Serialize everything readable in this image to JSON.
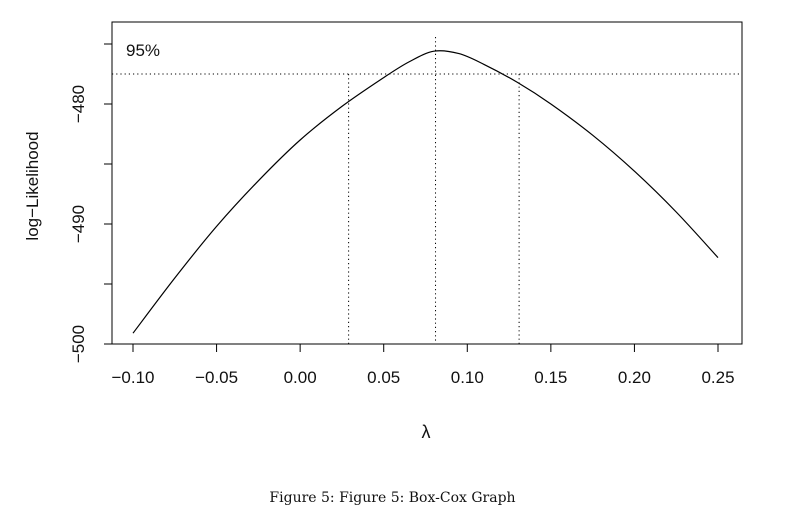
{
  "chart_data": {
    "type": "line",
    "title": "",
    "xlabel": "λ",
    "ylabel": "log−Likelihood",
    "xlim": [
      -0.1,
      0.25
    ],
    "ylim": [
      -500,
      -475
    ],
    "x_ticks": [
      -0.1,
      -0.05,
      0.0,
      0.05,
      0.1,
      0.15,
      0.2,
      0.25
    ],
    "x_tick_labels": [
      "−0.10",
      "−0.05",
      "0.00",
      "0.05",
      "0.10",
      "0.15",
      "0.20",
      "0.25"
    ],
    "y_ticks": [
      -500,
      -490,
      -480
    ],
    "y_tick_labels": [
      "−500",
      "−490",
      "−480"
    ],
    "series": [
      {
        "x": [
          -0.1,
          -0.075,
          -0.05,
          -0.025,
          0.0,
          0.025,
          0.05,
          0.065,
          0.08,
          0.095,
          0.11,
          0.13,
          0.15,
          0.175,
          0.2,
          0.225,
          0.25
        ],
        "y": [
          -499.1,
          -494.5,
          -490.2,
          -486.4,
          -483.0,
          -480.2,
          -477.8,
          -476.5,
          -475.6,
          -475.8,
          -476.7,
          -478.2,
          -480.0,
          -482.6,
          -485.6,
          -489.0,
          -492.8
        ]
      }
    ],
    "ci_level_label": "95%",
    "ci_threshold_y": -477.5,
    "ci_lambda_lower": 0.029,
    "ci_lambda_hat": 0.081,
    "ci_lambda_upper": 0.131
  },
  "caption": "Figure 5:  Figure 5:  Box-Cox Graph"
}
